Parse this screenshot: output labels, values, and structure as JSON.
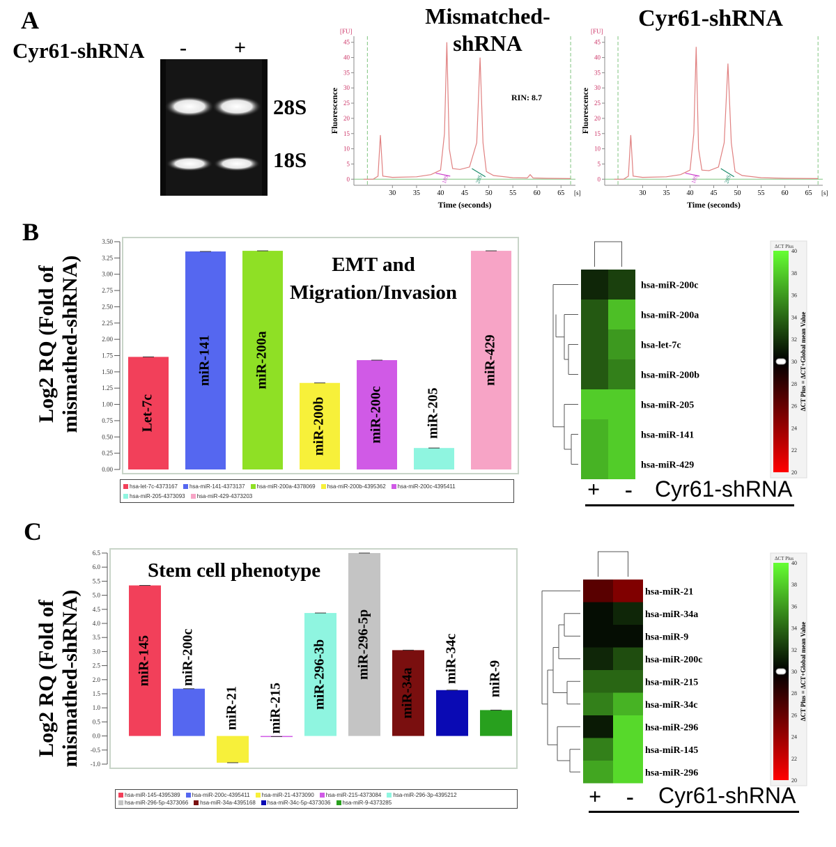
{
  "panel_a": {
    "letter": "A",
    "gel": {
      "row_label": "Cyr61-shRNA",
      "lane_minus": "-",
      "lane_plus": "+",
      "band_28s": "28S",
      "band_18s": "18S"
    },
    "trace_left_title": "Mismatched-\nshRNA",
    "trace_right_title": "Cyr61-shRNA",
    "rin": "RIN: 8.7"
  },
  "panel_b": {
    "letter": "B",
    "ylabel": "Log2 RQ (Fold of\nmismathed-shRNA)",
    "annotation": "EMT and\nMigration/Invasion",
    "heatmap_label": "Cyr61-shRNA",
    "heatmap_plus": "+",
    "heatmap_minus": "-",
    "scale_title": "ΔCT Plus",
    "scale_axis": "ΔCT Plus = ΔCT+Global mean Value"
  },
  "panel_c": {
    "letter": "C",
    "ylabel": "Log2 RQ (Fold of\nmismathed-shRNA)",
    "annotation": "Stem cell phenotype",
    "heatmap_label": "Cyr61-shRNA",
    "heatmap_plus": "+",
    "heatmap_minus": "-",
    "scale_title": "ΔCT Plus",
    "scale_axis": "ΔCT Plus = ΔCT+Global mean Value"
  },
  "chart_data": [
    {
      "type": "line",
      "xlabel": "Time (seconds)",
      "ylabel": "Fluorescence",
      "unit_y": "[FU]",
      "unit_x": "[s]",
      "xlim": [
        22,
        68
      ],
      "ylim": [
        -2,
        47
      ],
      "xticks": [
        30,
        35,
        40,
        45,
        50,
        55,
        60,
        65
      ],
      "yticks": [
        0,
        5,
        10,
        15,
        20,
        25,
        30,
        35,
        40,
        45
      ],
      "peak_labels": [
        "18S",
        "28S"
      ],
      "series": [
        {
          "x": [
            24,
            26,
            27,
            27.5,
            28,
            30,
            35,
            38,
            40,
            40.8,
            41.3,
            41.8,
            42.5,
            44,
            46,
            47.5,
            48.2,
            48.8,
            49.5,
            51,
            55,
            58,
            58.6,
            59.2,
            62,
            67
          ],
          "y": [
            0,
            0,
            1,
            14.5,
            1,
            0.6,
            0.8,
            1.5,
            3,
            15,
            45,
            10,
            3.5,
            3.2,
            4,
            12,
            40,
            12,
            2.5,
            1.2,
            0.5,
            0.4,
            1.5,
            0.4,
            0.3,
            0.2
          ]
        }
      ]
    },
    {
      "type": "line",
      "xlabel": "Time (seconds)",
      "ylabel": "Fluorescence",
      "unit_y": "[FU]",
      "unit_x": "[s]",
      "xlim": [
        22,
        68
      ],
      "ylim": [
        -2,
        47
      ],
      "xticks": [
        30,
        35,
        40,
        45,
        50,
        55,
        60,
        65
      ],
      "yticks": [
        0,
        5,
        10,
        15,
        20,
        25,
        30,
        35,
        40,
        45
      ],
      "peak_labels": [
        "18S",
        "28S"
      ],
      "series": [
        {
          "x": [
            24,
            26,
            27,
            27.5,
            28,
            30,
            35,
            38,
            40,
            40.8,
            41.3,
            41.8,
            42.5,
            44,
            46,
            47.2,
            48,
            48.7,
            49.5,
            51,
            55,
            60,
            67
          ],
          "y": [
            0,
            0,
            1,
            14.5,
            1,
            0.6,
            0.8,
            1.5,
            3,
            15,
            43.5,
            10,
            3,
            2.8,
            4,
            12,
            38,
            12,
            2.5,
            1.2,
            0.5,
            0.3,
            0.2
          ]
        }
      ]
    },
    {
      "type": "bar",
      "ylabel": "Log2 RQ (Fold of mismathed-shRNA)",
      "ylim": [
        0,
        3.5
      ],
      "yticks": [
        "0.00",
        "0.25",
        "0.50",
        "0.75",
        "1.00",
        "1.25",
        "1.50",
        "1.75",
        "2.00",
        "2.25",
        "2.50",
        "2.75",
        "3.00",
        "3.25",
        "3.50"
      ],
      "categories": [
        "Let-7c",
        "miR-141",
        "miR-200a",
        "miR-200b",
        "miR-200c",
        "miR-205",
        "miR-429"
      ],
      "values": [
        1.73,
        3.35,
        3.36,
        1.33,
        1.68,
        0.33,
        3.36
      ],
      "colors": [
        "#f2405a",
        "#5567f0",
        "#8fe025",
        "#f7f03a",
        "#d05ae6",
        "#8ff5e0",
        "#f7a4c6"
      ],
      "legend": [
        "hsa-let-7c-4373167",
        "hsa-miR-141-4373137",
        "hsa-miR-200a-4378069",
        "hsa-miR-200b-4395362",
        "hsa-miR-200c-4395411",
        "hsa-miR-205-4373093",
        "hsa-miR-429-4373203"
      ]
    },
    {
      "type": "heatmap",
      "columns": [
        "+",
        "-"
      ],
      "rows": [
        "hsa-miR-200c",
        "hsa-miR-200a",
        "hsa-let-7c",
        "hsa-miR-200b",
        "hsa-miR-205",
        "hsa-miR-141",
        "hsa-miR-429"
      ],
      "values": [
        [
          31.5,
          32.5
        ],
        [
          33.5,
          37.5
        ],
        [
          33.5,
          36
        ],
        [
          33.5,
          35
        ],
        [
          38,
          38
        ],
        [
          37,
          38
        ],
        [
          37,
          38
        ]
      ],
      "color_scale": {
        "min": 20,
        "max": 40,
        "ticks": [
          20,
          22,
          24,
          26,
          28,
          30,
          32,
          34,
          36,
          38,
          40
        ],
        "colors": [
          "#ff0000",
          "#000000",
          "#66ff33"
        ]
      }
    },
    {
      "type": "bar",
      "ylabel": "Log2 RQ (Fold of mismathed-shRNA)",
      "ylim": [
        -1.0,
        6.5
      ],
      "yticks": [
        "-1.0",
        "-0.5",
        "0.0",
        "0.5",
        "1.0",
        "1.5",
        "2.0",
        "2.5",
        "3.0",
        "3.5",
        "4.0",
        "4.5",
        "5.0",
        "5.5",
        "6.0",
        "6.5"
      ],
      "categories": [
        "miR-145",
        "miR-200c",
        "miR-21",
        "miR-215",
        "miR-296-3b",
        "miR-296-5p",
        "miR-34a",
        "miR-34c",
        "miR-9"
      ],
      "values": [
        5.35,
        1.68,
        -0.95,
        -0.02,
        4.37,
        6.5,
        3.05,
        1.63,
        0.92
      ],
      "colors": [
        "#f2405a",
        "#5567f0",
        "#f7f03a",
        "#d05ae6",
        "#8ff5e0",
        "#c4c4c4",
        "#7a0f0f",
        "#0a0ab4",
        "#28a01e"
      ],
      "legend": [
        "hsa-miR-145-4395389",
        "hsa-miR-200c-4395411",
        "hsa-miR-21-4373090",
        "hsa-miR-215-4373084",
        "hsa-miR-296-3p-4395212",
        "hsa-miR-296-5p-4373066",
        "hsa-miR-34a-4395168",
        "hsa-miR-34c-5p-4373036",
        "hsa-miR-9-4373285"
      ]
    },
    {
      "type": "heatmap",
      "columns": [
        "+",
        "-"
      ],
      "rows": [
        "hsa-miR-21",
        "hsa-miR-34a",
        "hsa-miR-9",
        "hsa-miR-200c",
        "hsa-miR-215",
        "hsa-miR-34c",
        "hsa-miR-296",
        "hsa-miR-145",
        "hsa-miR-296"
      ],
      "values": [
        [
          26.5,
          25
        ],
        [
          30.5,
          31.5
        ],
        [
          30.5,
          30.5
        ],
        [
          31.5,
          33
        ],
        [
          34,
          34
        ],
        [
          35,
          37
        ],
        [
          31,
          38.5
        ],
        [
          35,
          38.5
        ],
        [
          36.5,
          38.5
        ]
      ],
      "color_scale": {
        "min": 20,
        "max": 40,
        "ticks": [
          20,
          22,
          24,
          26,
          28,
          30,
          32,
          34,
          36,
          38,
          40
        ],
        "colors": [
          "#ff0000",
          "#000000",
          "#66ff33"
        ]
      }
    }
  ]
}
